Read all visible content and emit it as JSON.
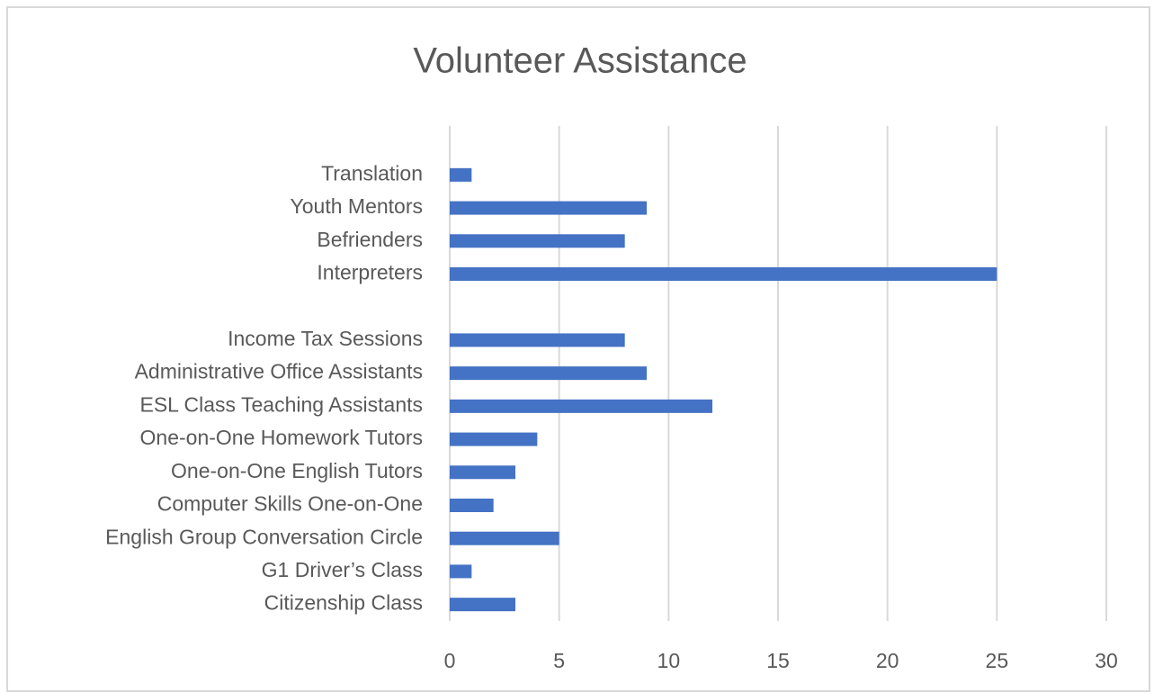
{
  "chart_data": {
    "type": "barh",
    "title": "Volunteer Assistance",
    "categories": [
      "Citizenship Class",
      "G1 Driver’s Class",
      "English Group Conversation Circle",
      "Computer Skills One-on-One",
      "One-on-One English Tutors",
      "One-on-One Homework Tutors",
      "ESL Class Teaching Assistants",
      "Administrative Office Assistants",
      "Income Tax Sessions",
      null,
      "Interpreters",
      "Befrienders",
      "Youth Mentors",
      "Translation"
    ],
    "values": [
      3,
      1,
      5,
      2,
      3,
      4,
      12,
      9,
      8,
      null,
      25,
      8,
      9,
      1
    ],
    "color": "#4472c4",
    "xlim": [
      0,
      30
    ],
    "xticks": [
      0,
      5,
      10,
      15,
      20,
      25,
      30
    ],
    "grid": true
  }
}
